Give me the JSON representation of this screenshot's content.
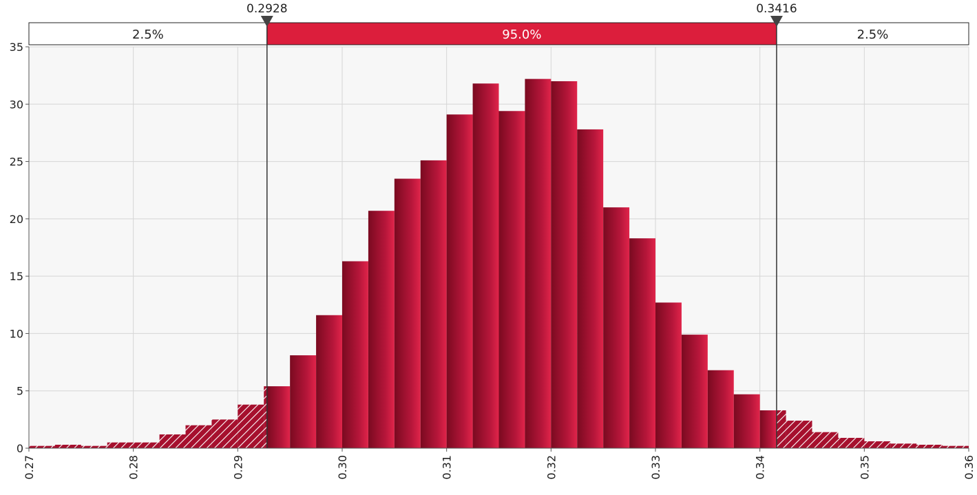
{
  "chart_data": {
    "type": "bar",
    "title": "",
    "xlabel": "",
    "ylabel": "",
    "xlim": [
      0.27,
      0.36
    ],
    "ylim": [
      0,
      35
    ],
    "bin_width": 0.0025,
    "grid": true,
    "x_ticks": [
      "0.27",
      "0.28",
      "0.29",
      "0.30",
      "0.31",
      "0.32",
      "0.33",
      "0.34",
      "0.35",
      "0.36"
    ],
    "y_ticks": [
      "0",
      "5",
      "10",
      "15",
      "20",
      "25",
      "30",
      "35"
    ],
    "bins_start": [
      0.27,
      0.2725,
      0.275,
      0.2775,
      0.28,
      0.2825,
      0.285,
      0.2875,
      0.29,
      0.2925,
      0.295,
      0.2975,
      0.3,
      0.3025,
      0.305,
      0.3075,
      0.31,
      0.3125,
      0.315,
      0.3175,
      0.32,
      0.3225,
      0.325,
      0.3275,
      0.33,
      0.3325,
      0.335,
      0.3375,
      0.34,
      0.3425,
      0.345,
      0.3475,
      0.35,
      0.3525,
      0.355,
      0.3575
    ],
    "values": [
      0.2,
      0.3,
      0.2,
      0.5,
      0.5,
      1.2,
      2.0,
      2.5,
      3.8,
      5.4,
      8.1,
      11.6,
      16.3,
      20.7,
      23.5,
      25.1,
      29.1,
      31.8,
      29.4,
      32.2,
      32.0,
      27.8,
      21.0,
      18.3,
      12.7,
      9.9,
      6.8,
      4.7,
      3.3,
      2.4,
      1.4,
      0.9,
      0.6,
      0.4,
      0.3,
      0.2
    ],
    "markers": [
      {
        "value": 0.2928,
        "label": "0.2928"
      },
      {
        "value": 0.3416,
        "label": "0.3416"
      }
    ],
    "regions": [
      {
        "label": "2.5%",
        "fill": "#ffffff"
      },
      {
        "label": "95.0%",
        "fill": "#dc1e3c"
      },
      {
        "label": "2.5%",
        "fill": "#ffffff"
      }
    ],
    "colors": {
      "bar_main": "#c81e3c",
      "bar_dark": "#7a0a20",
      "band": "#dc1e3c",
      "grid": "#d6d6d6",
      "marker": "#333333"
    }
  }
}
